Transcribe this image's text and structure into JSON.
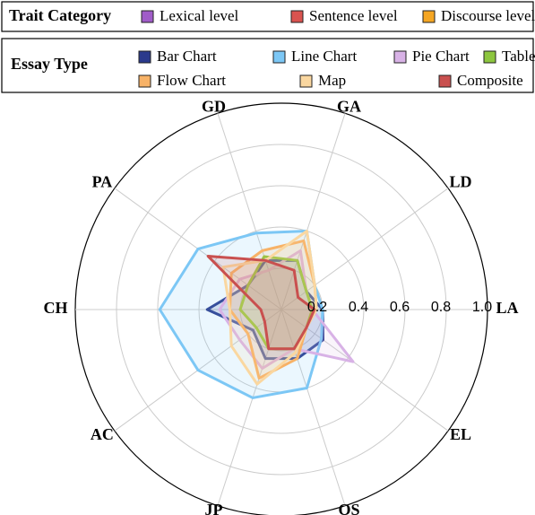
{
  "chart_data": {
    "type": "radar",
    "categories": [
      "LA",
      "LD",
      "GA",
      "GD",
      "PA",
      "CH",
      "AC",
      "JP",
      "OS",
      "EL"
    ],
    "category_colors": [
      "#a05cc8",
      "#a05cc8",
      "#d9534f",
      "#d9534f",
      "#d9534f",
      "#d9534f",
      "#f5a623",
      "#f5a623",
      "#f5a623",
      "#f5a623"
    ],
    "trait_legend": {
      "title": "Trait Category",
      "items": [
        {
          "name": "Lexical level",
          "color": "#a05cc8"
        },
        {
          "name": "Sentence level",
          "color": "#d9534f"
        },
        {
          "name": "Discourse level",
          "color": "#f5a623"
        }
      ]
    },
    "legend_title": "Essay Type",
    "legend_position": "top",
    "ylim": [
      0,
      1
    ],
    "yticks": [
      0.2,
      0.4,
      0.6,
      0.8,
      {
        "value": 1,
        "label": "1.0"
      }
    ],
    "grid": true,
    "series": [
      {
        "name": "Bar Chart",
        "color": "#2b3a8c",
        "values": [
          0.2,
          0.15,
          0.25,
          0.25,
          0.2,
          0.36,
          0.17,
          0.25,
          0.25,
          0.25
        ]
      },
      {
        "name": "Line Chart",
        "color": "#7cc7f5",
        "values": [
          0.2,
          0.2,
          0.4,
          0.39,
          0.5,
          0.59,
          0.5,
          0.45,
          0.4,
          0.24
        ]
      },
      {
        "name": "Pie Chart",
        "color": "#d8b2e6",
        "values": [
          0.15,
          0.15,
          0.3,
          0.2,
          0.25,
          0.3,
          0.25,
          0.3,
          0.2,
          0.43
        ]
      },
      {
        "name": "Table",
        "color": "#8dc63f",
        "values": [
          0.15,
          0.15,
          0.25,
          0.27,
          0.2,
          0.2,
          0.15,
          0.2,
          0.2,
          0.15
        ]
      },
      {
        "name": "Flow Chart",
        "color": "#f7b267",
        "values": [
          0.17,
          0.2,
          0.35,
          0.3,
          0.3,
          0.25,
          0.2,
          0.35,
          0.25,
          0.15
        ]
      },
      {
        "name": "Map",
        "color": "#fad7a0",
        "values": [
          0.17,
          0.2,
          0.4,
          0.25,
          0.35,
          0.25,
          0.3,
          0.38,
          0.22,
          0.15
        ]
      },
      {
        "name": "Composite",
        "color": "#c9504f",
        "values": [
          0.16,
          0.1,
          0.2,
          0.25,
          0.44,
          0.1,
          0.1,
          0.2,
          0.2,
          0.15
        ]
      }
    ]
  }
}
